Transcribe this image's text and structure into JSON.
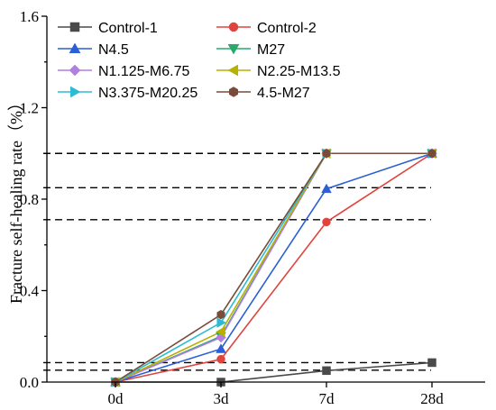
{
  "chart_data": {
    "type": "line",
    "title": "",
    "xlabel": "",
    "ylabel": "Fracture self-healing rate（%）",
    "categories": [
      "0d",
      "3d",
      "7d",
      "28d"
    ],
    "ylim": [
      0,
      1.6
    ],
    "yticks": [
      "0.0",
      "0.4",
      "0.8",
      "1.2",
      "1.6"
    ],
    "ytick_values": [
      0,
      0.4,
      0.8,
      1.2,
      1.6
    ],
    "grid": false,
    "legend_position": "top",
    "reference_lines": [
      1.0,
      0.85,
      0.71,
      0.085,
      0.052
    ],
    "series": [
      {
        "name": "Control-1",
        "color": "#4a4a4a",
        "marker": "square",
        "values": [
          0,
          0,
          0.05,
          0.085
        ]
      },
      {
        "name": "Control-2",
        "color": "#e0443e",
        "marker": "circle",
        "values": [
          0,
          0.1,
          0.7,
          1.0
        ]
      },
      {
        "name": "N4.5",
        "color": "#2a5fd6",
        "marker": "triangle-up",
        "values": [
          0,
          0.145,
          0.845,
          1.0
        ]
      },
      {
        "name": "M27",
        "color": "#2aa86a",
        "marker": "triangle-down",
        "values": [
          0,
          0.2,
          1.0,
          1.0
        ]
      },
      {
        "name": "N1.125-M6.75",
        "color": "#b07fe0",
        "marker": "diamond",
        "values": [
          0,
          0.195,
          1.0,
          1.0
        ]
      },
      {
        "name": "N2.25-M13.5",
        "color": "#b8b000",
        "marker": "triangle-left",
        "values": [
          0,
          0.22,
          1.0,
          1.0
        ]
      },
      {
        "name": "N3.375-M20.25",
        "color": "#2bbcd4",
        "marker": "triangle-right",
        "values": [
          0,
          0.26,
          1.0,
          1.0
        ]
      },
      {
        "name": "4.5-M27",
        "color": "#7a4b3a",
        "marker": "hexagon",
        "values": [
          0,
          0.295,
          1.0,
          1.0
        ]
      }
    ]
  }
}
